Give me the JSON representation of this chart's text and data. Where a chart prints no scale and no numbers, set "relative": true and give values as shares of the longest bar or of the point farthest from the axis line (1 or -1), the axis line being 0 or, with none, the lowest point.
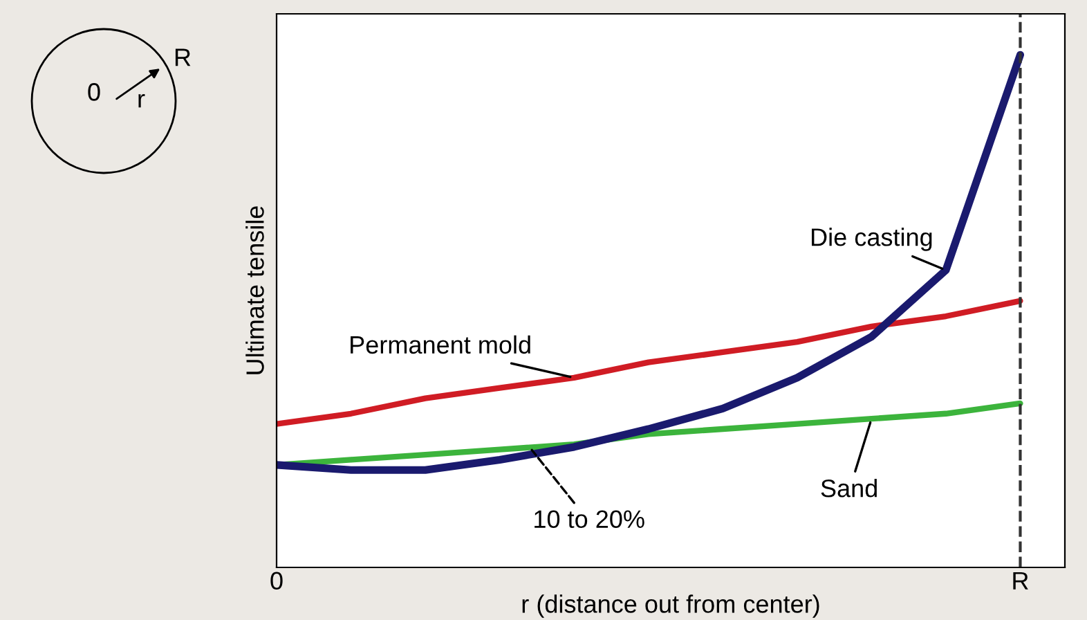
{
  "chart_data": {
    "type": "line",
    "relative": true,
    "xlabel": "r (distance out from center)",
    "ylabel": "Ultimate tensile",
    "categories": [
      "0",
      null,
      null,
      null,
      null,
      null,
      null,
      null,
      null,
      null,
      "R"
    ],
    "grid": false,
    "legend": false,
    "line_style": "solid",
    "marker": "none",
    "series": [
      {
        "name": "Permanent mold",
        "color": "#d01c24",
        "values": [
          0.28,
          0.3,
          0.33,
          0.35,
          0.37,
          0.4,
          0.42,
          0.44,
          0.47,
          0.49,
          0.52
        ]
      },
      {
        "name": "Sand",
        "color": "#3cb43c",
        "values": [
          0.2,
          0.21,
          0.22,
          0.23,
          0.24,
          0.26,
          0.27,
          0.28,
          0.29,
          0.3,
          0.32
        ]
      },
      {
        "name": "Die casting",
        "color": "#1a1a6e",
        "values": [
          0.2,
          0.19,
          0.19,
          0.21,
          0.235,
          0.27,
          0.31,
          0.37,
          0.45,
          0.58,
          1.0
        ]
      }
    ],
    "ref_lines": [
      {
        "axis": "x",
        "value": "R",
        "color": "#333333",
        "line_style": "dashed"
      }
    ],
    "annotations": [
      "10 to 20%",
      "0",
      "r",
      "R"
    ]
  }
}
